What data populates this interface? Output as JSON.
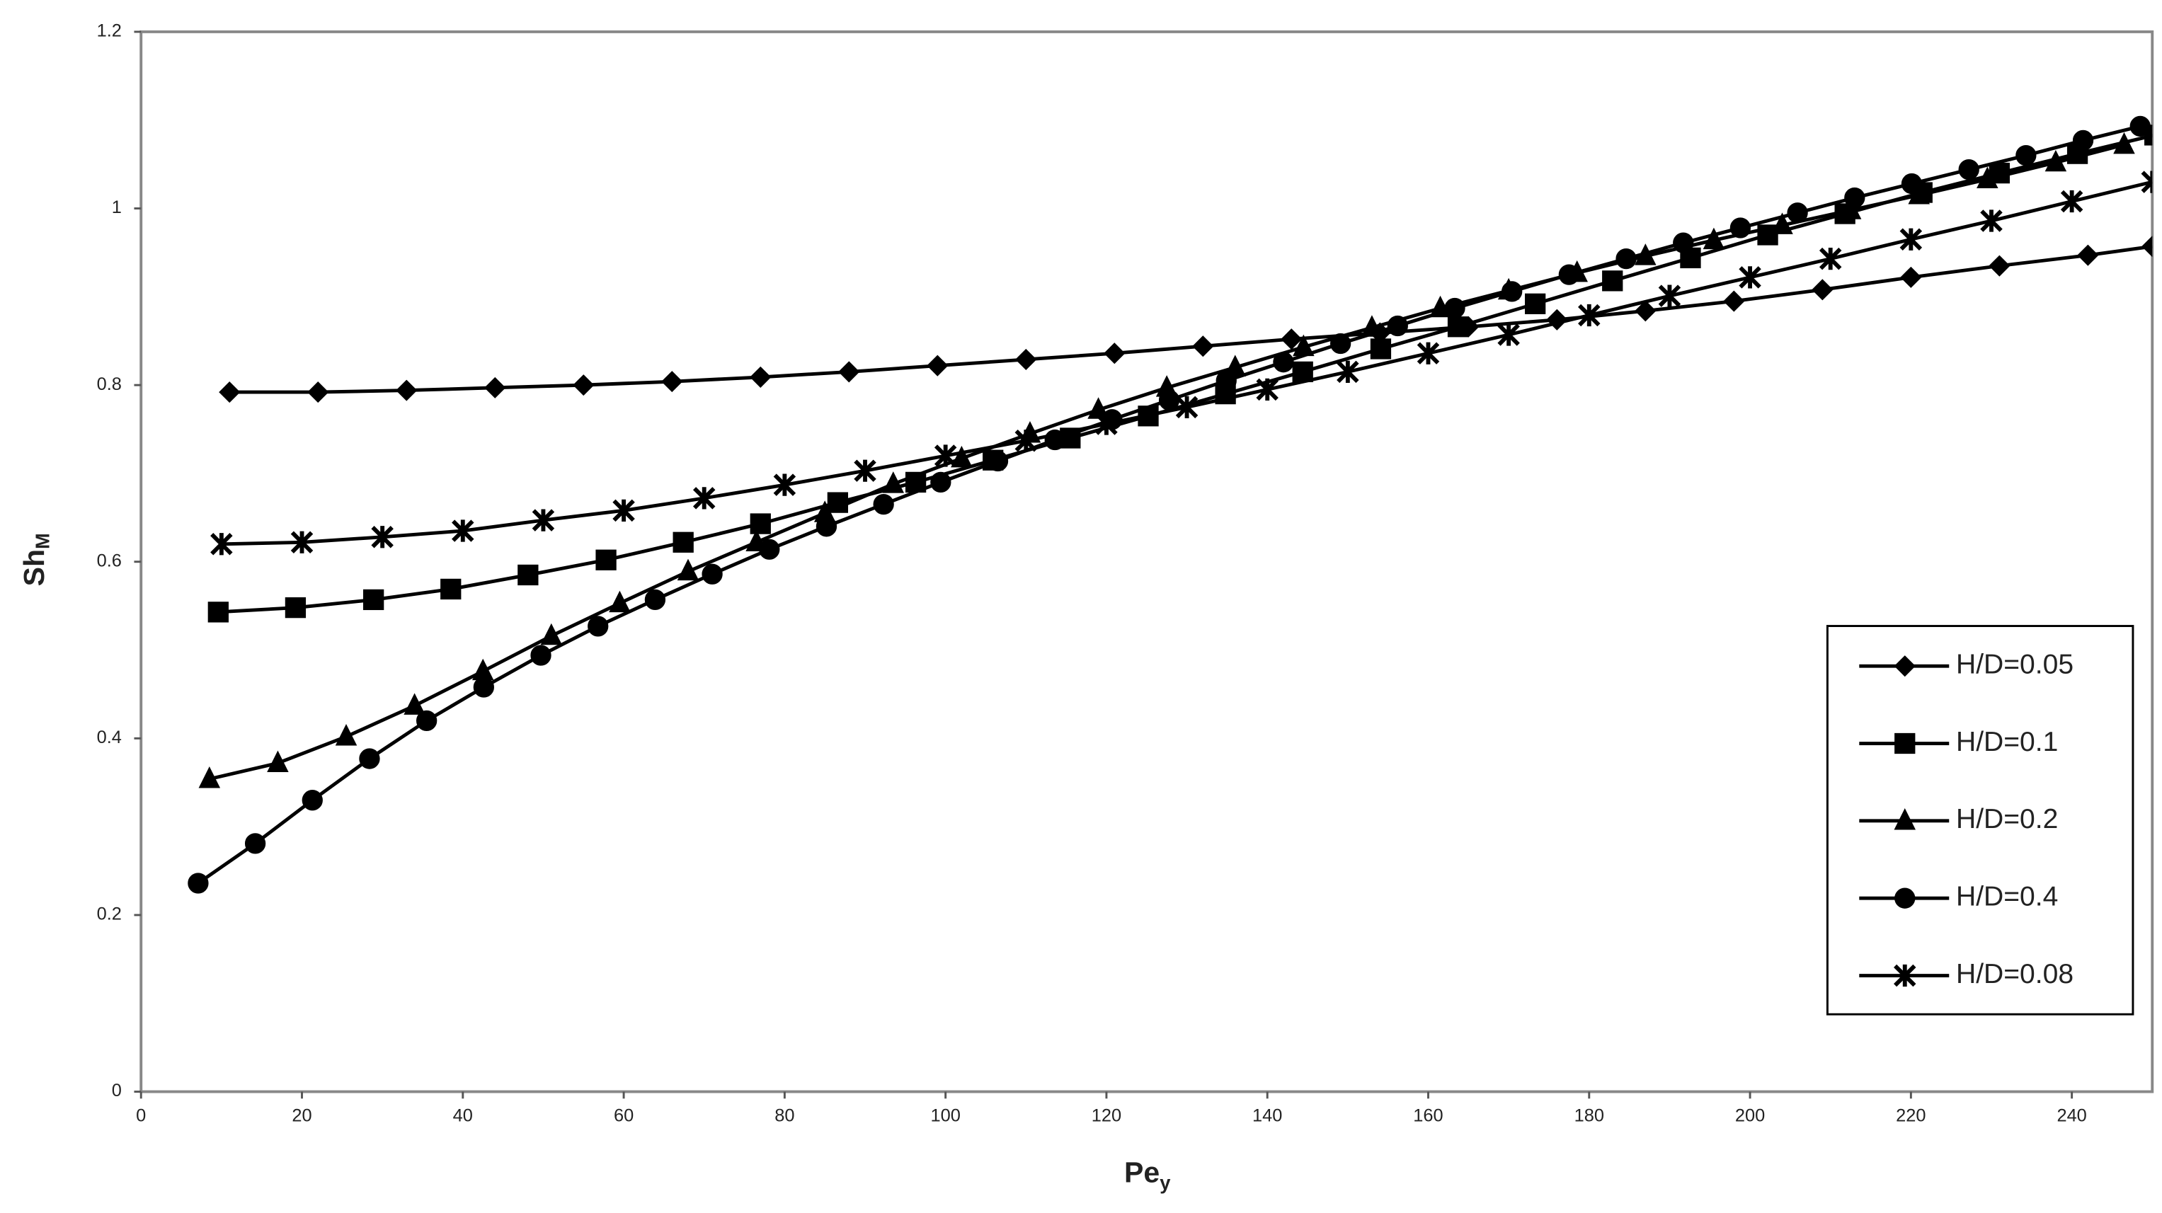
{
  "chart_data": {
    "type": "line",
    "x_label": {
      "text": "Pe",
      "subscript": "y"
    },
    "y_label": {
      "text": "Sh",
      "subscript": "M"
    },
    "xlim": [
      0,
      250
    ],
    "ylim": [
      0,
      1.2
    ],
    "xticks": [
      0,
      20,
      40,
      60,
      80,
      100,
      120,
      140,
      160,
      180,
      200,
      220,
      240
    ],
    "yticks": [
      0,
      0.2,
      0.4,
      0.6,
      0.8,
      1,
      1.2
    ],
    "grid": false,
    "legend": "right",
    "series": [
      {
        "name": "H/D=0.05",
        "color": "#000000",
        "marker": "diamond",
        "x": [
          11,
          22,
          33,
          44,
          55,
          66,
          77,
          88,
          99,
          110,
          121,
          132,
          143,
          154,
          165,
          176,
          187,
          198,
          209,
          220,
          231,
          242,
          250
        ],
        "values": [
          0.792,
          0.792,
          0.794,
          0.797,
          0.8,
          0.804,
          0.809,
          0.815,
          0.822,
          0.829,
          0.836,
          0.844,
          0.852,
          0.859,
          0.866,
          0.874,
          0.884,
          0.895,
          0.908,
          0.922,
          0.935,
          0.947,
          0.957
        ]
      },
      {
        "name": "H/D=0.1",
        "color": "#000000",
        "marker": "square",
        "x": [
          9.6,
          19.2,
          28.9,
          38.5,
          48.1,
          57.8,
          67.4,
          77,
          86.6,
          96.3,
          105.9,
          115.5,
          125.2,
          134.8,
          144.4,
          154.1,
          163.7,
          173.3,
          182.9,
          192.6,
          202.2,
          211.8,
          221.4,
          231,
          240.7,
          250.3
        ],
        "values": [
          0.543,
          0.548,
          0.557,
          0.569,
          0.585,
          0.602,
          0.622,
          0.643,
          0.667,
          0.69,
          0.715,
          0.74,
          0.765,
          0.79,
          0.815,
          0.841,
          0.866,
          0.892,
          0.918,
          0.944,
          0.97,
          0.994,
          1.018,
          1.04,
          1.062,
          1.083
        ]
      },
      {
        "name": "H/D=0.2",
        "color": "#000000",
        "marker": "triangle",
        "x": [
          8.5,
          17,
          25.5,
          34,
          42.5,
          51,
          59.5,
          68,
          76.5,
          85,
          93.5,
          102,
          110.5,
          119,
          127.5,
          136,
          144.5,
          153,
          161.5,
          170,
          178.5,
          187,
          195.5,
          204,
          212.5,
          221,
          229.5,
          238,
          246.5
        ],
        "values": [
          0.354,
          0.372,
          0.402,
          0.437,
          0.476,
          0.516,
          0.553,
          0.589,
          0.622,
          0.655,
          0.688,
          0.717,
          0.745,
          0.772,
          0.797,
          0.82,
          0.843,
          0.865,
          0.887,
          0.907,
          0.927,
          0.946,
          0.964,
          0.981,
          0.998,
          1.015,
          1.033,
          1.052,
          1.072
        ]
      },
      {
        "name": "H/D=0.4",
        "color": "#000000",
        "marker": "circle",
        "x": [
          7.1,
          14.2,
          21.3,
          28.4,
          35.5,
          42.6,
          49.7,
          56.8,
          63.9,
          71,
          78.1,
          85.2,
          92.3,
          99.4,
          106.5,
          113.6,
          120.7,
          127.8,
          134.9,
          142,
          149.1,
          156.2,
          163.3,
          170.4,
          177.5,
          184.6,
          191.7,
          198.8,
          205.9,
          213,
          220.1,
          227.2,
          234.3,
          241.4,
          248.5
        ],
        "values": [
          0.236,
          0.281,
          0.33,
          0.377,
          0.42,
          0.458,
          0.494,
          0.527,
          0.557,
          0.586,
          0.614,
          0.64,
          0.665,
          0.69,
          0.714,
          0.738,
          0.761,
          0.783,
          0.805,
          0.826,
          0.847,
          0.867,
          0.887,
          0.906,
          0.925,
          0.943,
          0.961,
          0.978,
          0.995,
          1.012,
          1.028,
          1.044,
          1.06,
          1.077,
          1.093
        ]
      },
      {
        "name": "H/D=0.08",
        "color": "#000000",
        "marker": "star",
        "x": [
          10,
          20,
          30,
          40,
          50,
          60,
          70,
          80,
          90,
          100,
          110,
          120,
          130,
          140,
          150,
          160,
          170,
          180,
          190,
          200,
          210,
          220,
          230,
          240,
          250
        ],
        "values": [
          0.62,
          0.622,
          0.628,
          0.635,
          0.647,
          0.658,
          0.672,
          0.687,
          0.703,
          0.72,
          0.737,
          0.756,
          0.775,
          0.795,
          0.815,
          0.836,
          0.857,
          0.879,
          0.901,
          0.922,
          0.943,
          0.965,
          0.986,
          1.008,
          1.03
        ]
      }
    ]
  }
}
